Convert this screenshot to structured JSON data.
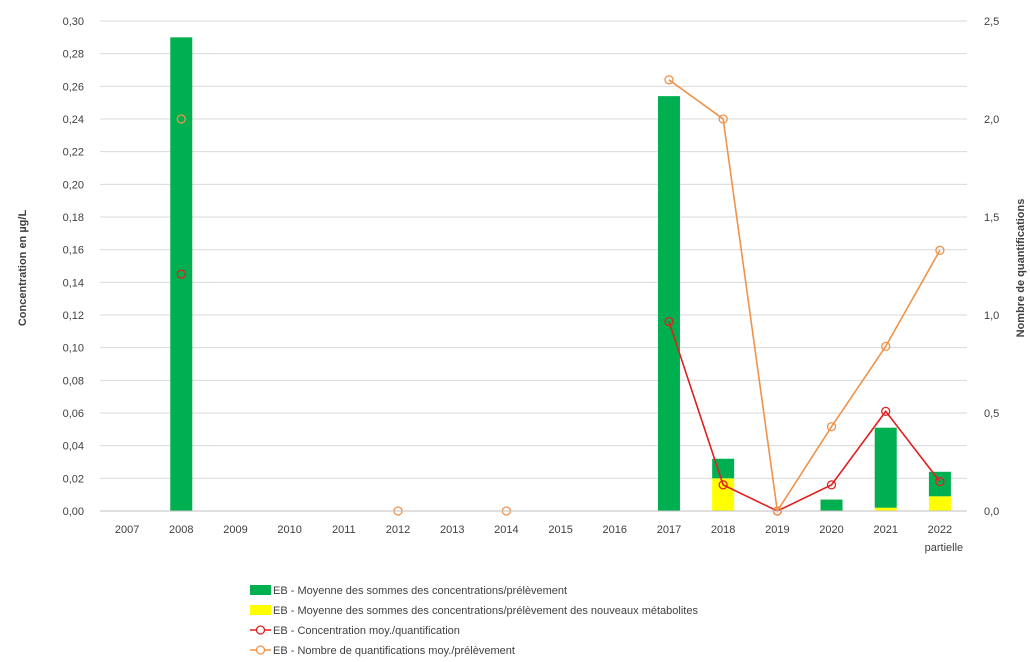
{
  "chart_data": {
    "type": "bar",
    "categories": [
      "2007",
      "2008",
      "2009",
      "2010",
      "2011",
      "2012",
      "2013",
      "2014",
      "2015",
      "2016",
      "2017",
      "2018",
      "2019",
      "2020",
      "2021",
      "2022"
    ],
    "category_sublabels": {
      "2022": "partielle"
    },
    "ylabel": "Concentration en µg/L",
    "y2label": "Nombre de quantifications",
    "ylim": [
      0,
      0.3
    ],
    "y2lim": [
      0,
      2.5
    ],
    "yticks": [
      "0,00",
      "0,02",
      "0,04",
      "0,06",
      "0,08",
      "0,10",
      "0,12",
      "0,14",
      "0,16",
      "0,18",
      "0,20",
      "0,22",
      "0,24",
      "0,26",
      "0,28",
      "0,30"
    ],
    "y2ticks": [
      "0,0",
      "0,5",
      "1,0",
      "1,5",
      "2,0",
      "2,5"
    ],
    "grid": true,
    "legend_position": "bottom",
    "bar_series": [
      {
        "name": "EB - Moyenne des sommes des concentrations/prélèvement des nouveaux métabolites",
        "color": "#ffff00",
        "values": [
          null,
          0,
          null,
          null,
          null,
          null,
          null,
          null,
          null,
          null,
          0,
          0.02,
          0,
          0,
          0.002,
          0.009
        ]
      },
      {
        "name": "EB - Moyenne des sommes des concentrations/prélèvement",
        "color": "#00b050",
        "values": [
          null,
          0.29,
          null,
          null,
          null,
          null,
          null,
          null,
          null,
          null,
          0.254,
          0.012,
          0,
          0.007,
          0.049,
          0.015
        ]
      }
    ],
    "line_series": [
      {
        "name": "EB - Concentration moy./quantification",
        "color": "#e0201f",
        "axis": "left",
        "values": [
          null,
          0.145,
          null,
          null,
          null,
          null,
          null,
          null,
          null,
          null,
          0.116,
          0.016,
          0,
          0.016,
          0.061,
          0.018
        ]
      },
      {
        "name": "EB - Nombre de quantifications moy./prélèvement",
        "color": "#f0924a",
        "axis": "right",
        "values": [
          null,
          2.0,
          null,
          null,
          null,
          0,
          null,
          0,
          null,
          null,
          2.2,
          2.0,
          0,
          0.43,
          0.84,
          1.33
        ]
      }
    ],
    "legend_order": [
      "EB - Moyenne des sommes des concentrations/prélèvement",
      "EB - Moyenne des sommes des concentrations/prélèvement des nouveaux métabolites",
      "EB - Concentration moy./quantification",
      "EB - Nombre de quantifications moy./prélèvement"
    ]
  }
}
